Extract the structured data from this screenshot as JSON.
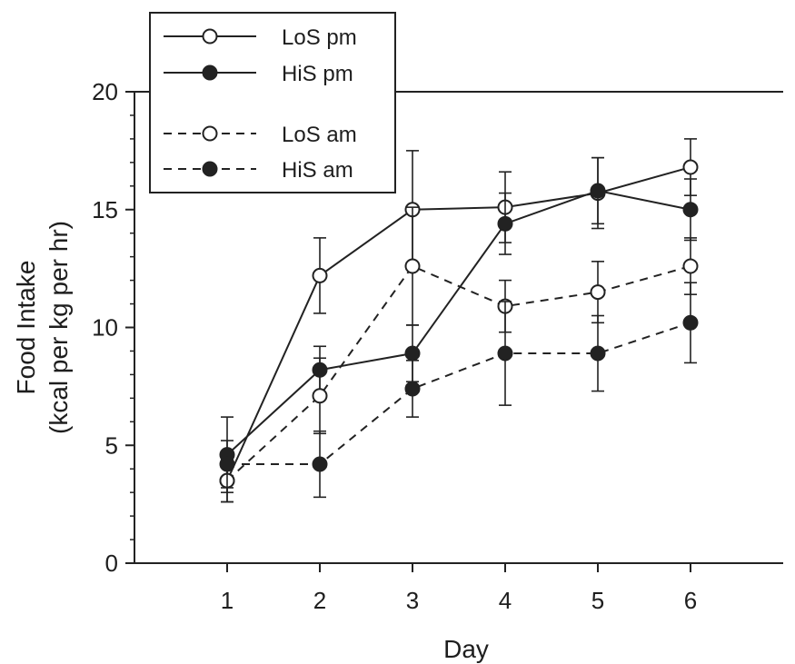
{
  "chart_data": {
    "type": "line",
    "xlabel": "Day",
    "ylabel_line1": "Food Intake",
    "ylabel_line2": "(kcal per kg per hr)",
    "x": [
      1,
      2,
      3,
      4,
      5,
      6
    ],
    "x_ticks": [
      "1",
      "2",
      "3",
      "4",
      "5",
      "6"
    ],
    "xlim": [
      0,
      7
    ],
    "ylim": [
      0,
      20
    ],
    "y_ticks": [
      "0",
      "5",
      "10",
      "15",
      "20"
    ],
    "grid": false,
    "legend_position": "top-left",
    "series": [
      {
        "name": "LoS pm",
        "line_style": "solid",
        "marker": "open-circle",
        "values": [
          3.5,
          12.2,
          15.0,
          15.1,
          15.7,
          16.8
        ],
        "errors": [
          0.9,
          1.6,
          2.5,
          1.5,
          1.5,
          1.2
        ]
      },
      {
        "name": "HiS pm",
        "line_style": "solid",
        "marker": "filled-circle",
        "values": [
          4.6,
          8.2,
          8.9,
          14.4,
          15.8,
          15.0
        ],
        "errors": [
          1.6,
          1.0,
          1.2,
          1.3,
          1.4,
          1.3
        ]
      },
      {
        "name": "LoS am",
        "line_style": "dashed",
        "marker": "open-circle",
        "values": [
          3.5,
          7.1,
          12.6,
          10.9,
          11.5,
          12.6
        ],
        "errors": [
          0.9,
          1.6,
          2.5,
          1.1,
          1.3,
          1.2
        ]
      },
      {
        "name": "HiS am",
        "line_style": "dashed",
        "marker": "filled-circle",
        "values": [
          4.2,
          4.2,
          7.4,
          8.9,
          8.9,
          10.2
        ],
        "errors": [
          1.0,
          1.4,
          1.2,
          2.2,
          1.6,
          1.7
        ]
      }
    ],
    "colors": {
      "line": "#222222",
      "marker_fill": "#222222",
      "open_marker_fill": "#ffffff",
      "background": "#ffffff"
    }
  }
}
